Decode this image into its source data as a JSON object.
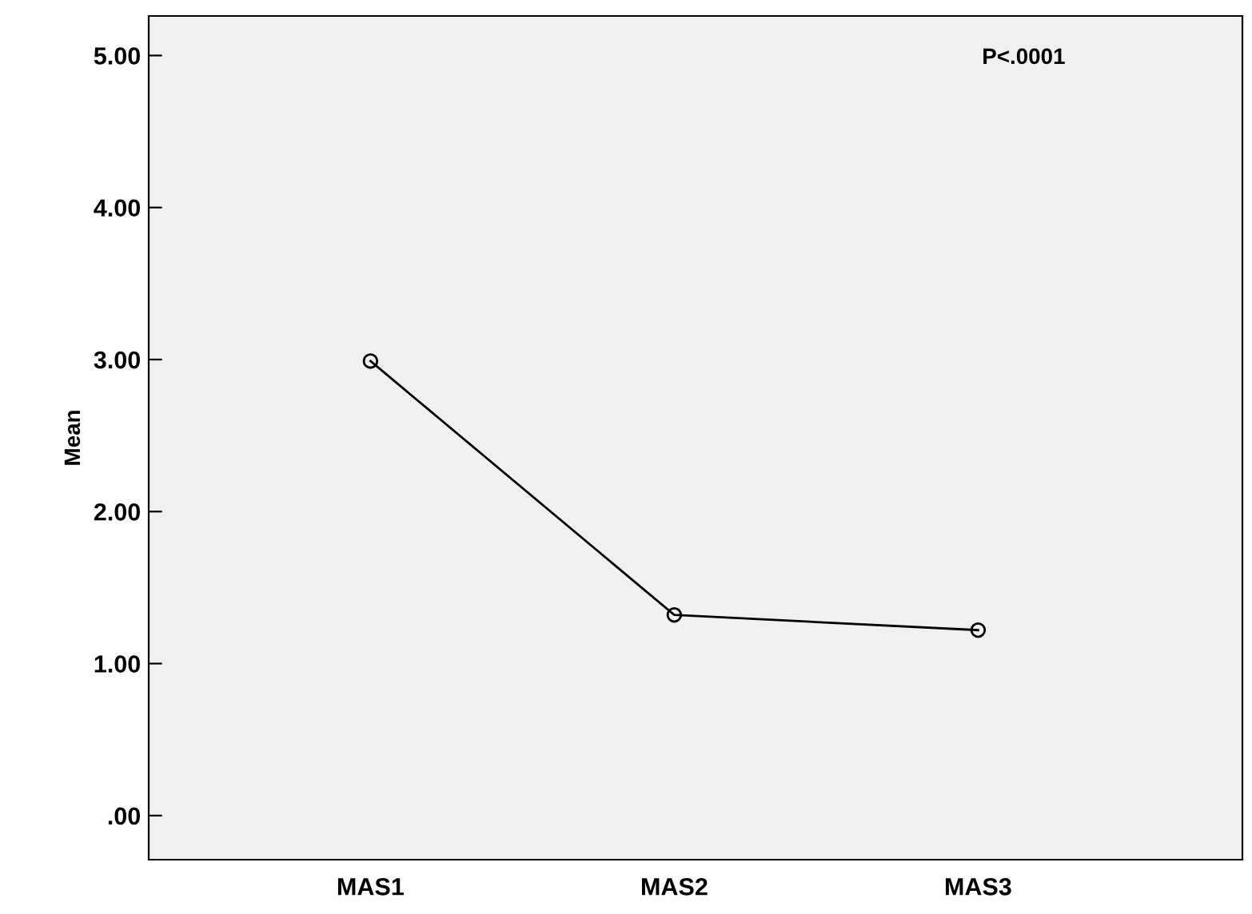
{
  "chart_data": {
    "type": "line",
    "ylabel": "Mean",
    "categories": [
      "MAS1",
      "MAS2",
      "MAS3"
    ],
    "values": [
      2.99,
      1.32,
      1.22
    ],
    "color": "#000000",
    "ylim": [
      -0.29,
      5.26
    ],
    "yticks": [
      {
        "value": 0,
        "label": ".00"
      },
      {
        "value": 1,
        "label": "1.00"
      },
      {
        "value": 2,
        "label": "2.00"
      },
      {
        "value": 3,
        "label": "3.00"
      },
      {
        "value": 4,
        "label": "4.00"
      },
      {
        "value": 5,
        "label": "5.00"
      }
    ],
    "marker": "circle",
    "line_style": "solid",
    "grid": false,
    "annotations": [
      "P<.0001"
    ]
  }
}
